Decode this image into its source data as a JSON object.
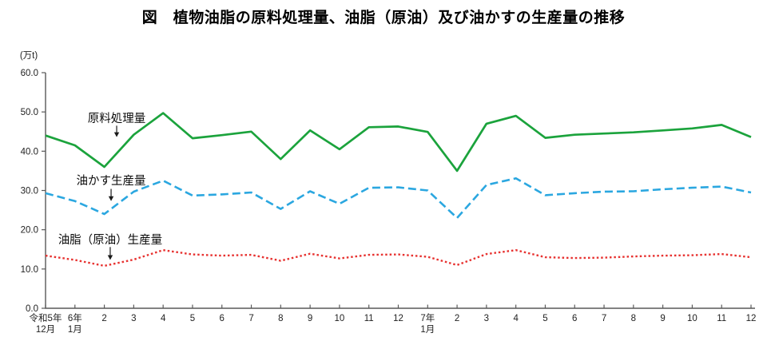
{
  "title": "図　植物油脂の原料処理量、油脂（原油）及び油かすの生産量の推移",
  "chart_data": {
    "type": "line",
    "unit_label": "(万t)",
    "ylim": [
      0,
      60
    ],
    "ytick_step": 10,
    "ytick_labels": [
      "0.0",
      "10.0",
      "20.0",
      "30.0",
      "40.0",
      "50.0",
      "60.0"
    ],
    "grid": false,
    "legend_position": "inline-annotations",
    "x_tick_labels": [
      [
        "令和5年",
        "12月"
      ],
      [
        "6年",
        "1月"
      ],
      [
        "2"
      ],
      [
        "3"
      ],
      [
        "4"
      ],
      [
        "5"
      ],
      [
        "6"
      ],
      [
        "7"
      ],
      [
        "8"
      ],
      [
        "9"
      ],
      [
        "10"
      ],
      [
        "11"
      ],
      [
        "12"
      ],
      [
        "7年",
        "1月"
      ],
      [
        "2"
      ],
      [
        "3"
      ],
      [
        "4"
      ],
      [
        "5"
      ],
      [
        "6"
      ],
      [
        "7"
      ],
      [
        "8"
      ],
      [
        "9"
      ],
      [
        "10"
      ],
      [
        "11"
      ],
      [
        "12"
      ]
    ],
    "categories": [
      "令和5年12月",
      "6年1月",
      "6年2月",
      "6年3月",
      "6年4月",
      "6年5月",
      "6年6月",
      "6年7月",
      "6年8月",
      "6年9月",
      "6年10月",
      "6年11月",
      "6年12月",
      "7年1月",
      "7年2月",
      "7年3月",
      "7年4月",
      "7年5月",
      "7年6月",
      "7年7月",
      "7年8月",
      "7年9月",
      "7年10月",
      "7年11月",
      "7年12月"
    ],
    "series": [
      {
        "id": "raw-material-processing",
        "name": "原料処理量",
        "color": "#1BA33C",
        "style": "solid",
        "values": [
          44.0,
          41.5,
          36.0,
          44.2,
          49.7,
          43.3,
          44.1,
          45.0,
          38.0,
          45.3,
          40.5,
          46.1,
          46.3,
          44.9,
          35.0,
          47.0,
          49.0,
          43.4,
          44.2,
          44.5,
          44.8,
          45.3,
          45.8,
          46.7,
          43.6
        ]
      },
      {
        "id": "oil-cake-production",
        "name": "油かす生産量",
        "color": "#2BA7E0",
        "style": "dashed",
        "values": [
          29.3,
          27.3,
          24.0,
          29.7,
          32.5,
          28.7,
          29.0,
          29.5,
          25.3,
          29.8,
          26.6,
          30.7,
          30.8,
          30.0,
          23.0,
          31.4,
          33.1,
          28.8,
          29.3,
          29.7,
          29.8,
          30.3,
          30.7,
          31.0,
          29.5
        ]
      },
      {
        "id": "crude-oil-production",
        "name": "油脂（原油）生産量",
        "color": "#E73230",
        "style": "dotted",
        "values": [
          13.4,
          12.3,
          10.8,
          12.4,
          14.8,
          13.7,
          13.4,
          13.6,
          12.1,
          13.9,
          12.7,
          13.6,
          13.7,
          13.1,
          11.0,
          13.8,
          14.8,
          13.0,
          12.8,
          12.9,
          13.2,
          13.4,
          13.5,
          13.8,
          13.0
        ]
      }
    ],
    "annotations": [
      {
        "id": "raw-material-processing",
        "text": "原料処理量",
        "xi": 2.42,
        "label_v": 47.4,
        "arrow_from_v": 46.5,
        "arrow_to_v": 43.6
      },
      {
        "id": "oil-cake-production",
        "text": "油かす生産量",
        "xi": 2.23,
        "label_v": 31.5,
        "arrow_from_v": 30.4,
        "arrow_to_v": 27.3
      },
      {
        "id": "crude-oil-production",
        "text": "油脂（原油）生産量",
        "xi": 2.2,
        "label_v": 16.5,
        "arrow_from_v": 15.6,
        "arrow_to_v": 12.3
      }
    ]
  }
}
